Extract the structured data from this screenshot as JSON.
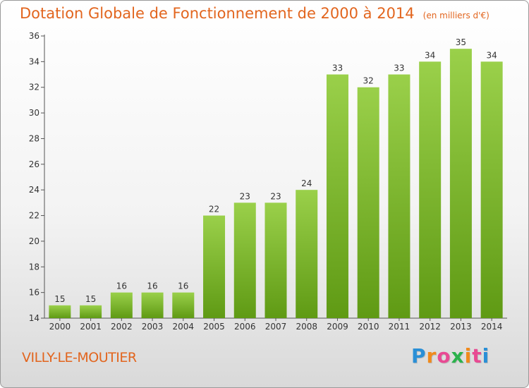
{
  "header": {
    "title": "Dotation Globale de Fonctionnement de 2000 à 2014",
    "subtitle": "(en milliers d'€)"
  },
  "footer": {
    "commune": "VILLY-LE-MOUTIER",
    "brand": "Proxiti",
    "brand_letters": [
      "P",
      "r",
      "o",
      "x",
      "i",
      "t",
      "i"
    ],
    "brand_colors": [
      "#2a8fd6",
      "#f08a1c",
      "#e84a93",
      "#2bb24c",
      "#f08a1c",
      "#e84a93",
      "#2a8fd6"
    ]
  },
  "colors": {
    "title": "#e2651e",
    "bar_top": "#9ad04a",
    "bar_bottom": "#5f9a14",
    "axis": "#555555",
    "label": "#333333"
  },
  "chart_data": {
    "type": "bar",
    "title": "Dotation Globale de Fonctionnement de 2000 à 2014",
    "subtitle": "(en milliers d'€)",
    "categories": [
      "2000",
      "2001",
      "2002",
      "2003",
      "2004",
      "2005",
      "2006",
      "2007",
      "2008",
      "2009",
      "2010",
      "2011",
      "2012",
      "2013",
      "2014"
    ],
    "values": [
      15,
      15,
      16,
      16,
      16,
      22,
      23,
      23,
      24,
      33,
      32,
      33,
      34,
      35,
      34
    ],
    "ylim": [
      14,
      36
    ],
    "yticks": [
      14,
      16,
      18,
      20,
      22,
      24,
      26,
      28,
      30,
      32,
      34,
      36
    ],
    "xlabel": "",
    "ylabel": "",
    "grid": false,
    "legend": "none"
  }
}
